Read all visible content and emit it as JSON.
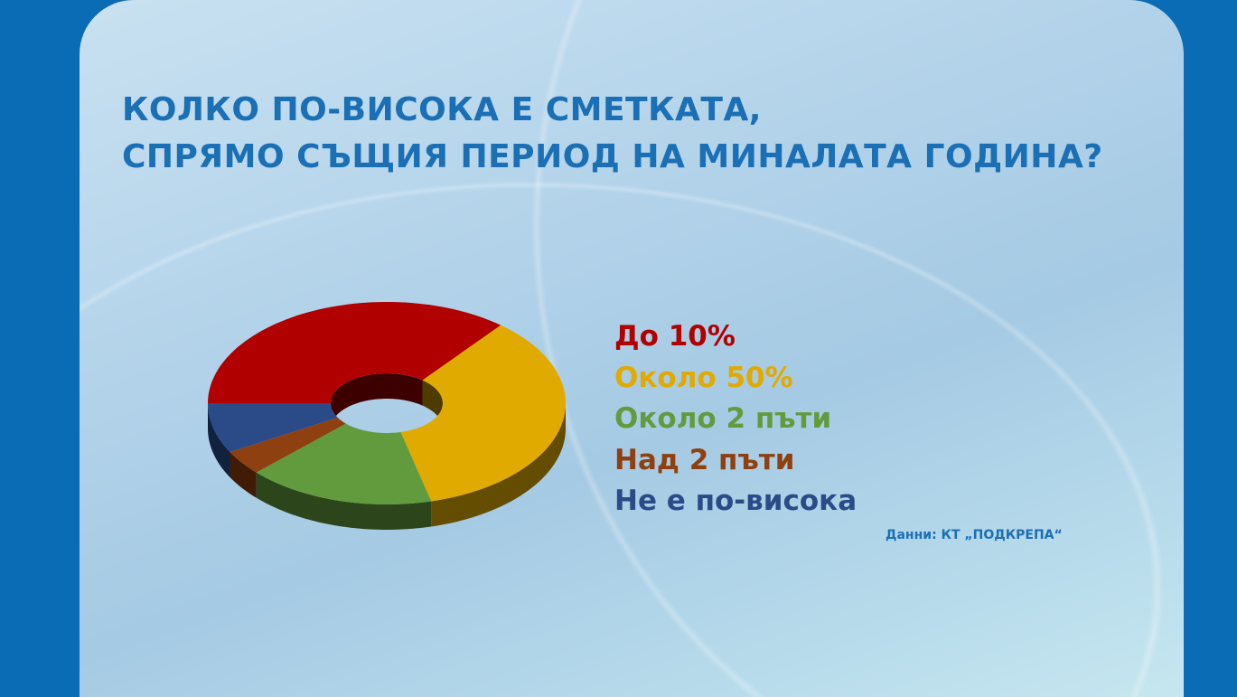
{
  "chart_data": {
    "type": "pie",
    "style": "3d-donut",
    "title_lines": [
      "КОЛКО ПО-ВИСОКА Е СМЕТКАТА,",
      "СПРЯМО СЪЩИЯ ПЕРИОД НА МИНАЛАТА ГОДИНА?"
    ],
    "categories": [
      "До 10%",
      "Около 50%",
      "Около 2 пъти",
      "Над 2 пъти",
      "Не е по-висока"
    ],
    "values": [
      36,
      35,
      17,
      4,
      8
    ],
    "unit": "%",
    "colors": [
      "#b00000",
      "#e0aa00",
      "#629b3e",
      "#8f4010",
      "#2a4b88"
    ],
    "legend_placement": "right",
    "source": "Данни: КТ „ПОДКРЕПА“"
  }
}
